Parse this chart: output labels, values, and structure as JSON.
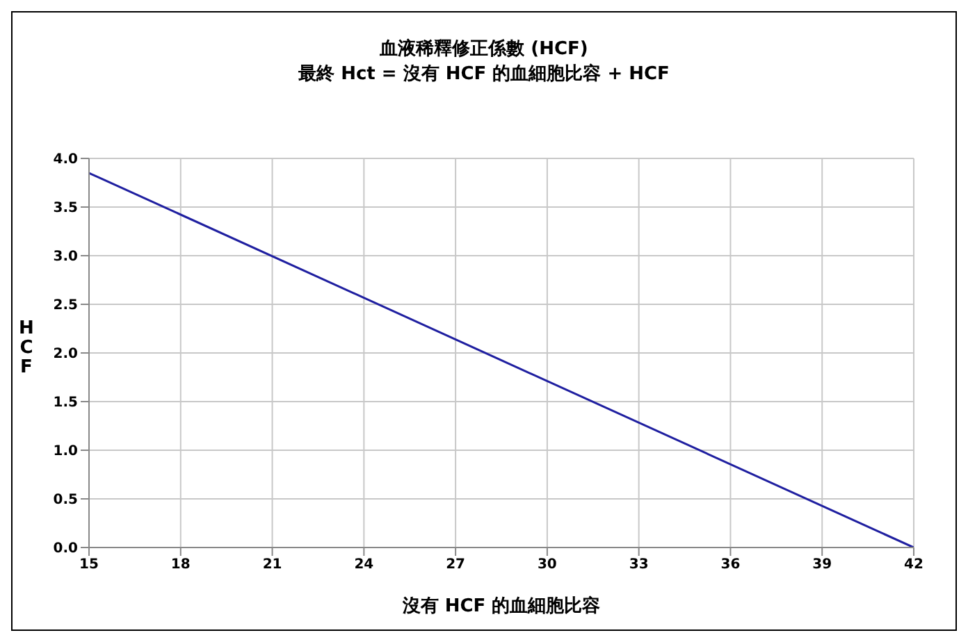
{
  "chart_data": {
    "type": "line",
    "title": "血液稀釋修正係數 (HCF)",
    "subtitle": "最終 Hct = 沒有 HCF 的血細胞比容 + HCF",
    "xlabel": "沒有 HCF 的血細胞比容",
    "ylabel": "HCF",
    "series": [
      {
        "color": "#1f1fa0",
        "x": [
          15,
          42
        ],
        "values": [
          3.85,
          0
        ]
      }
    ],
    "xlim": [
      15,
      42
    ],
    "xticks": [
      15,
      18,
      21,
      24,
      27,
      30,
      33,
      36,
      39,
      42
    ],
    "ylim": [
      0,
      4
    ],
    "yticks": [
      {
        "value": 0,
        "label": "0.0"
      },
      {
        "value": 0.5,
        "label": "0.5"
      },
      {
        "value": 1,
        "label": "1.0"
      },
      {
        "value": 1.5,
        "label": "1.5"
      },
      {
        "value": 2,
        "label": "2.0"
      },
      {
        "value": 2.5,
        "label": "2.5"
      },
      {
        "value": 3,
        "label": "3.0"
      },
      {
        "value": 3.5,
        "label": "3.5"
      },
      {
        "value": 4,
        "label": "4.0"
      }
    ],
    "grid": true,
    "legend": false,
    "marker": "none",
    "line_style": "solid"
  }
}
